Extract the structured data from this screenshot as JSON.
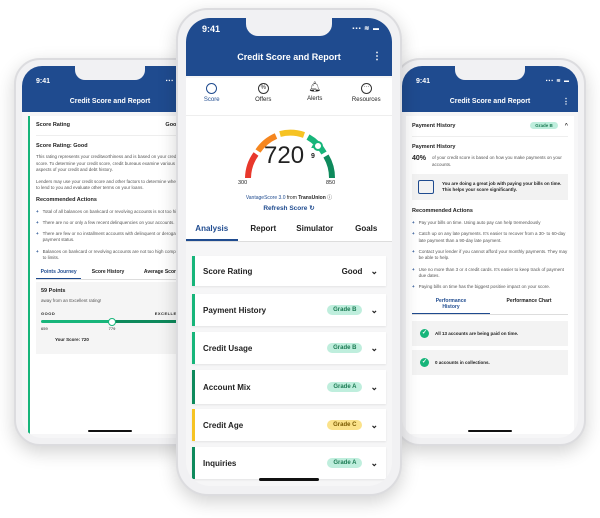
{
  "status": {
    "time": "9:41",
    "signal": "▪▪▪ ≋ ▬"
  },
  "header": {
    "title": "Credit Score and Report",
    "menu": "⋮"
  },
  "left": {
    "section": "Score Rating",
    "value": "Good",
    "heading": "Score Rating: Good",
    "p1": "This rating represents your creditworthiness and is based on your credit score. To determine your credit score, credit bureaus examine various aspects of your credit and debt history.",
    "p2": "Lenders may use your credit score and other factors to determine whether to lend to you and evaluate other terms on your loans.",
    "actions_title": "Recommended Actions",
    "actions": [
      "Total of all balances on bankcard or revolving accounts is not too high.",
      "There are no or only a few recent delinquencies on your accounts.",
      "There are few or no installment accounts with delinquent or derogatory payment status.",
      "Balances on bankcard or revolving accounts are not too high compared to limits."
    ],
    "tabs": [
      "Points Journey",
      "Score History",
      "Average Score"
    ],
    "points": "59 Points",
    "points_sub": "away from an Excellent rating!",
    "good": "GOOD",
    "excellent": "EXCELLENT",
    "ticks": [
      "659",
      "779",
      "850"
    ],
    "your_score": "Your Score: 720",
    "progress": 0.5
  },
  "center": {
    "nav": [
      {
        "label": "Score",
        "icon": "score-icon"
      },
      {
        "label": "Offers",
        "icon": "offers-icon"
      },
      {
        "label": "Alerts",
        "icon": "bell-icon"
      },
      {
        "label": "Resources",
        "icon": "more-icon"
      }
    ],
    "score": "720",
    "change": "9",
    "min": "300",
    "max": "850",
    "source_a": "VantageScore 3.0",
    "source_b": " from ",
    "source_c": "TransUnion",
    "refresh": "Refresh Score",
    "tabs": [
      "Analysis",
      "Report",
      "Simulator",
      "Goals"
    ],
    "rows": [
      {
        "label": "Score Rating",
        "value": "Good"
      },
      {
        "label": "Payment History",
        "value": "Grade B"
      },
      {
        "label": "Credit Usage",
        "value": "Grade B"
      },
      {
        "label": "Account Mix",
        "value": "Grade A"
      },
      {
        "label": "Credit Age",
        "value": "Grade C"
      },
      {
        "label": "Inquiries",
        "value": "Grade A"
      }
    ]
  },
  "right": {
    "section": "Payment History",
    "grade": "Grade B",
    "heading": "Payment History",
    "pct": "40%",
    "pct_text": "of your credit score is based on how you make payments on your accounts.",
    "tip": "You are doing a great job with paying your bills on time. This helps your score significantly.",
    "actions_title": "Recommended Actions",
    "actions": [
      "Pay your bills on time. Using auto pay can help tremendously",
      "Catch up on any late payments. It's easier to recover from a 30- to 60-day late payment than a 90-day late payment.",
      "Contact your lender if you cannot afford your monthly payments. They may be able to help.",
      "Use no more than 3 or 4 credit cards. It's easier to keep track of payment due dates.",
      "Paying bills on time has the biggest positive impact on your score."
    ],
    "tabs": [
      "Performance History",
      "Performance Chart"
    ],
    "items": [
      "All 13 accounts are being paid on time.",
      "0 accounts in collections."
    ]
  }
}
